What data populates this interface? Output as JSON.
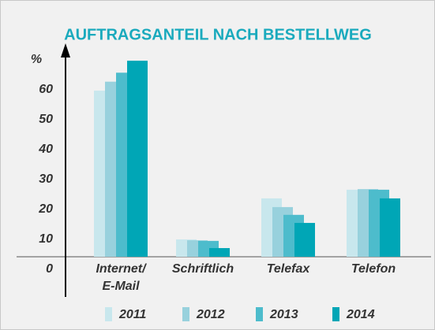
{
  "chart_data": {
    "type": "bar",
    "title": "AUFTRAGSANTEIL NACH BESTELLWEG",
    "y_label": "%",
    "categories": [
      "Internet/\nE-Mail",
      "Schriftlich",
      "Telefax",
      "Telefon"
    ],
    "series": [
      {
        "name": "2011",
        "color": "#c8e7ed",
        "values": [
          55.5,
          5.8,
          19.5,
          22.4
        ]
      },
      {
        "name": "2012",
        "color": "#98d1dd",
        "values": [
          58.5,
          5.5,
          16.6,
          22.6
        ]
      },
      {
        "name": "2013",
        "color": "#4dbccc",
        "values": [
          61.5,
          5.3,
          14,
          22.4
        ]
      },
      {
        "name": "2014",
        "color": "#00a6b6",
        "values": [
          65.5,
          2.9,
          11.3,
          19.5
        ]
      }
    ],
    "ylim": [
      0,
      70
    ],
    "yticks": [
      0,
      10,
      20,
      30,
      40,
      50,
      60
    ],
    "grid": false,
    "legend": "bottom"
  }
}
